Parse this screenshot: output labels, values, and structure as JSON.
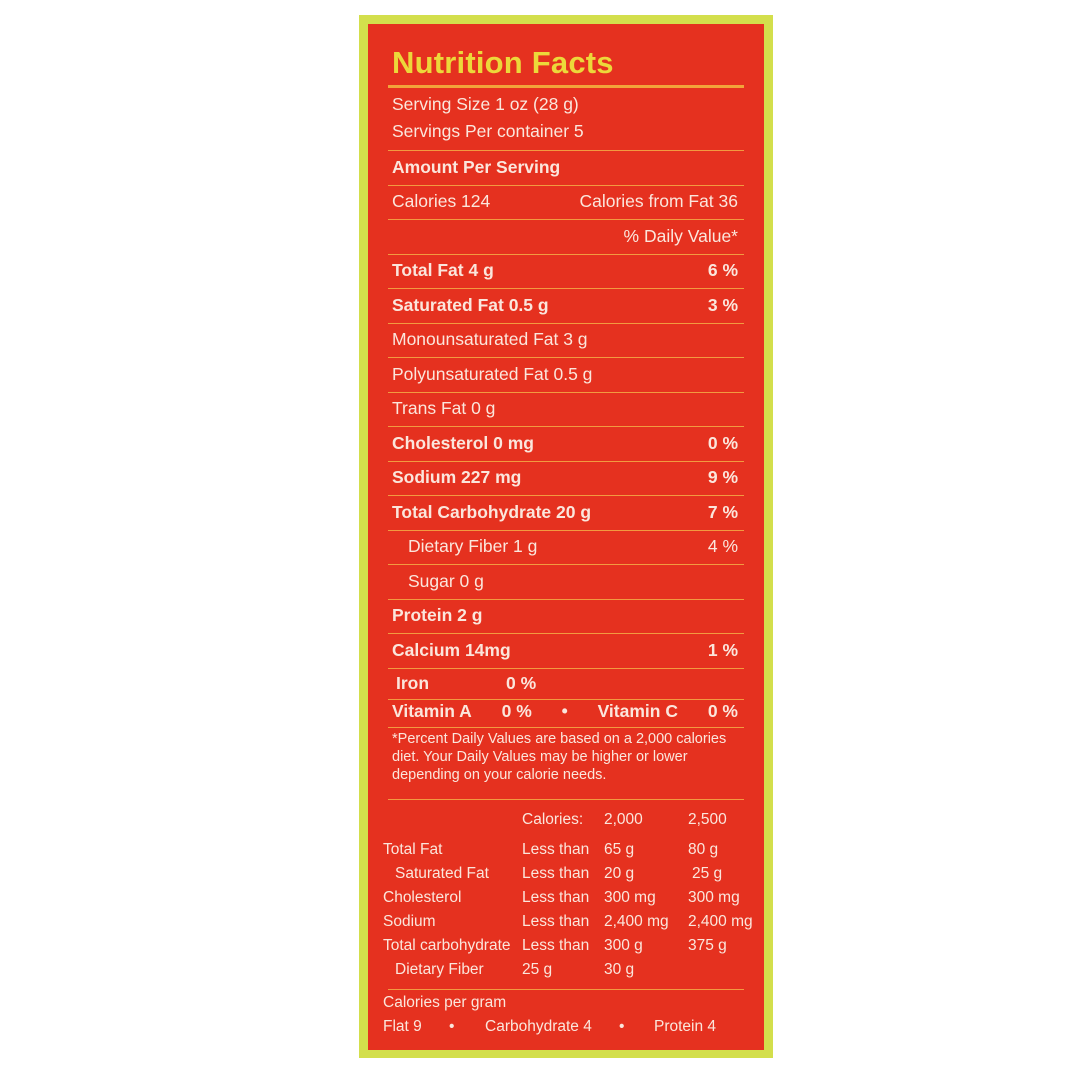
{
  "title": "Nutrition Facts",
  "serving_size": "Serving Size 1 oz (28 g)",
  "servings_per_container": "Servings Per container 5",
  "amount_per_serving": "Amount Per Serving",
  "calories": "Calories 124",
  "calories_from_fat": "Calories from Fat 36",
  "daily_value_header": "% Daily Value*",
  "nutrients": [
    {
      "label": "Total Fat 4 g",
      "dv": "6 %",
      "bold": true,
      "indent": false
    },
    {
      "label": "Saturated Fat 0.5 g",
      "dv": "3 %",
      "bold": true,
      "indent": false
    },
    {
      "label": "Monounsaturated Fat 3 g",
      "dv": "",
      "bold": false,
      "indent": false
    },
    {
      "label": "Polyunsaturated Fat 0.5 g",
      "dv": "",
      "bold": false,
      "indent": false
    },
    {
      "label": "Trans Fat  0 g",
      "dv": "",
      "bold": false,
      "indent": false
    },
    {
      "label": "Cholesterol 0 mg",
      "dv": "0 %",
      "bold": true,
      "indent": false
    },
    {
      "label": "Sodium 227 mg",
      "dv": "9 %",
      "bold": true,
      "indent": false
    },
    {
      "label": "Total Carbohydrate 20 g",
      "dv": "7 %",
      "bold": true,
      "indent": false
    },
    {
      "label": "Dietary Fiber 1 g",
      "dv": "4 %",
      "bold": false,
      "indent": true
    },
    {
      "label": "Sugar 0 g",
      "dv": "",
      "bold": false,
      "indent": true
    },
    {
      "label": "Protein 2 g",
      "dv": "",
      "bold": true,
      "indent": false
    },
    {
      "label": "Calcium 14mg",
      "dv": "1 %",
      "bold": true,
      "indent": false
    }
  ],
  "iron": {
    "label": "Iron",
    "dv": "0 %"
  },
  "vitamin_a": {
    "label": "Vitamin A",
    "dv": "0 %"
  },
  "vitamin_c": {
    "label": "Vitamin C",
    "dv": "0 %"
  },
  "bullet": "•",
  "footnote": "*Percent Daily Values are based on a 2,000 calories diet. Your Daily Values may be higher or lower depending on your calorie needs.",
  "dv_table": {
    "header": [
      "",
      "Calories:",
      "2,000",
      "2,500"
    ],
    "rows": [
      [
        "Total Fat",
        "Less than",
        "65 g",
        "80 g"
      ],
      [
        "Saturated Fat",
        "Less than",
        "20 g",
        "25 g"
      ],
      [
        "Cholesterol",
        "Less than",
        "300 mg",
        "300 mg"
      ],
      [
        "Sodium",
        "Less than",
        "2,400 mg",
        "2,400 mg"
      ],
      [
        "Total carbohydrate",
        "Less than",
        "300 g",
        "375 g"
      ],
      [
        "Dietary Fiber",
        "25 g",
        "30 g",
        ""
      ]
    ]
  },
  "calories_per_gram": {
    "label": "Calories per gram",
    "fat": "Flat 9",
    "carbohydrate": "Carbohydrate 4",
    "protein": "Protein 4"
  },
  "colors": {
    "background": "#e5311f",
    "border": "#d3df4c",
    "title": "#ecd83a",
    "rules": "#f29a40"
  }
}
